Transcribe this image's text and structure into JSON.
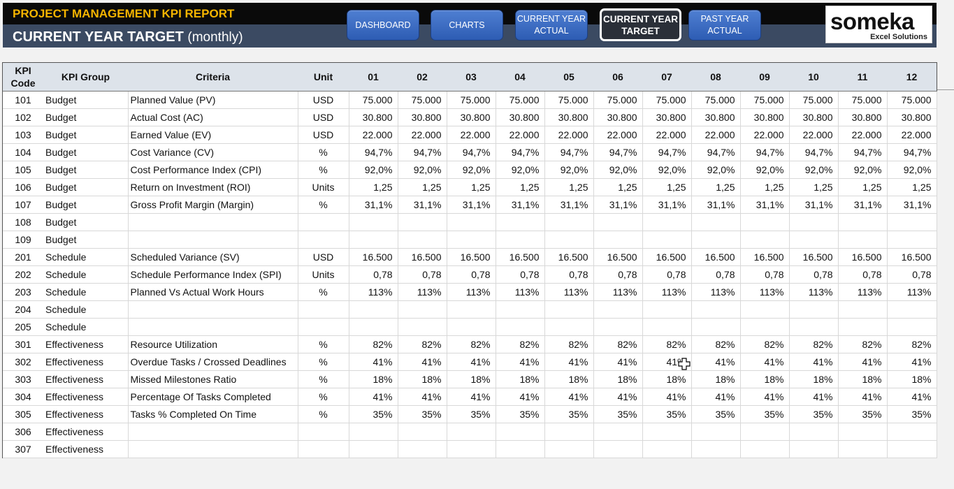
{
  "header": {
    "report_title": "PROJECT MANAGEMENT KPI REPORT",
    "page_title": "CURRENT YEAR TARGET",
    "page_subtitle": "(monthly)"
  },
  "nav": {
    "dashboard": "DASHBOARD",
    "charts": "CHARTS",
    "current_year_actual": "CURRENT YEAR\nACTUAL",
    "current_year_target": "CURRENT YEAR\nTARGET",
    "past_year_actual": "PAST YEAR\nACTUAL"
  },
  "logo": {
    "name": "someka",
    "tagline": "Excel Solutions"
  },
  "table": {
    "headers": {
      "kpi_code": "KPI\nCode",
      "kpi_group": "KPI Group",
      "criteria": "Criteria",
      "unit": "Unit",
      "months": [
        "01",
        "02",
        "03",
        "04",
        "05",
        "06",
        "07",
        "08",
        "09",
        "10",
        "11",
        "12"
      ]
    },
    "rows": [
      {
        "code": "101",
        "group": "Budget",
        "criteria": "Planned Value (PV)",
        "unit": "USD",
        "values": [
          "75.000",
          "75.000",
          "75.000",
          "75.000",
          "75.000",
          "75.000",
          "75.000",
          "75.000",
          "75.000",
          "75.000",
          "75.000",
          "75.000"
        ]
      },
      {
        "code": "102",
        "group": "Budget",
        "criteria": "Actual Cost (AC)",
        "unit": "USD",
        "values": [
          "30.800",
          "30.800",
          "30.800",
          "30.800",
          "30.800",
          "30.800",
          "30.800",
          "30.800",
          "30.800",
          "30.800",
          "30.800",
          "30.800"
        ]
      },
      {
        "code": "103",
        "group": "Budget",
        "criteria": "Earned Value (EV)",
        "unit": "USD",
        "values": [
          "22.000",
          "22.000",
          "22.000",
          "22.000",
          "22.000",
          "22.000",
          "22.000",
          "22.000",
          "22.000",
          "22.000",
          "22.000",
          "22.000"
        ]
      },
      {
        "code": "104",
        "group": "Budget",
        "criteria": "Cost Variance (CV)",
        "unit": "%",
        "values": [
          "94,7%",
          "94,7%",
          "94,7%",
          "94,7%",
          "94,7%",
          "94,7%",
          "94,7%",
          "94,7%",
          "94,7%",
          "94,7%",
          "94,7%",
          "94,7%"
        ]
      },
      {
        "code": "105",
        "group": "Budget",
        "criteria": "Cost Performance Index (CPI)",
        "unit": "%",
        "values": [
          "92,0%",
          "92,0%",
          "92,0%",
          "92,0%",
          "92,0%",
          "92,0%",
          "92,0%",
          "92,0%",
          "92,0%",
          "92,0%",
          "92,0%",
          "92,0%"
        ]
      },
      {
        "code": "106",
        "group": "Budget",
        "criteria": "Return on Investment (ROI)",
        "unit": "Units",
        "values": [
          "1,25",
          "1,25",
          "1,25",
          "1,25",
          "1,25",
          "1,25",
          "1,25",
          "1,25",
          "1,25",
          "1,25",
          "1,25",
          "1,25"
        ]
      },
      {
        "code": "107",
        "group": "Budget",
        "criteria": "Gross Profit Margin (Margin)",
        "unit": "%",
        "values": [
          "31,1%",
          "31,1%",
          "31,1%",
          "31,1%",
          "31,1%",
          "31,1%",
          "31,1%",
          "31,1%",
          "31,1%",
          "31,1%",
          "31,1%",
          "31,1%"
        ]
      },
      {
        "code": "108",
        "group": "Budget",
        "criteria": "",
        "unit": "",
        "values": [
          "",
          "",
          "",
          "",
          "",
          "",
          "",
          "",
          "",
          "",
          "",
          ""
        ]
      },
      {
        "code": "109",
        "group": "Budget",
        "criteria": "",
        "unit": "",
        "values": [
          "",
          "",
          "",
          "",
          "",
          "",
          "",
          "",
          "",
          "",
          "",
          ""
        ]
      },
      {
        "code": "201",
        "group": "Schedule",
        "criteria": "Scheduled Variance (SV)",
        "unit": "USD",
        "values": [
          "16.500",
          "16.500",
          "16.500",
          "16.500",
          "16.500",
          "16.500",
          "16.500",
          "16.500",
          "16.500",
          "16.500",
          "16.500",
          "16.500"
        ]
      },
      {
        "code": "202",
        "group": "Schedule",
        "criteria": "Schedule Performance Index (SPI)",
        "unit": "Units",
        "values": [
          "0,78",
          "0,78",
          "0,78",
          "0,78",
          "0,78",
          "0,78",
          "0,78",
          "0,78",
          "0,78",
          "0,78",
          "0,78",
          "0,78"
        ]
      },
      {
        "code": "203",
        "group": "Schedule",
        "criteria": "Planned Vs Actual Work Hours",
        "unit": "%",
        "values": [
          "113%",
          "113%",
          "113%",
          "113%",
          "113%",
          "113%",
          "113%",
          "113%",
          "113%",
          "113%",
          "113%",
          "113%"
        ]
      },
      {
        "code": "204",
        "group": "Schedule",
        "criteria": "",
        "unit": "",
        "values": [
          "",
          "",
          "",
          "",
          "",
          "",
          "",
          "",
          "",
          "",
          "",
          ""
        ]
      },
      {
        "code": "205",
        "group": "Schedule",
        "criteria": "",
        "unit": "",
        "values": [
          "",
          "",
          "",
          "",
          "",
          "",
          "",
          "",
          "",
          "",
          "",
          ""
        ]
      },
      {
        "code": "301",
        "group": "Effectiveness",
        "criteria": "Resource Utilization",
        "unit": "%",
        "values": [
          "82%",
          "82%",
          "82%",
          "82%",
          "82%",
          "82%",
          "82%",
          "82%",
          "82%",
          "82%",
          "82%",
          "82%"
        ]
      },
      {
        "code": "302",
        "group": "Effectiveness",
        "criteria": "Overdue Tasks / Crossed Deadlines",
        "unit": "%",
        "values": [
          "41%",
          "41%",
          "41%",
          "41%",
          "41%",
          "41%",
          "41%",
          "41%",
          "41%",
          "41%",
          "41%",
          "41%"
        ]
      },
      {
        "code": "303",
        "group": "Effectiveness",
        "criteria": "Missed Milestones Ratio",
        "unit": "%",
        "values": [
          "18%",
          "18%",
          "18%",
          "18%",
          "18%",
          "18%",
          "18%",
          "18%",
          "18%",
          "18%",
          "18%",
          "18%"
        ]
      },
      {
        "code": "304",
        "group": "Effectiveness",
        "criteria": "Percentage Of Tasks Completed",
        "unit": "%",
        "values": [
          "41%",
          "41%",
          "41%",
          "41%",
          "41%",
          "41%",
          "41%",
          "41%",
          "41%",
          "41%",
          "41%",
          "41%"
        ]
      },
      {
        "code": "305",
        "group": "Effectiveness",
        "criteria": "Tasks % Completed On Time",
        "unit": "%",
        "values": [
          "35%",
          "35%",
          "35%",
          "35%",
          "35%",
          "35%",
          "35%",
          "35%",
          "35%",
          "35%",
          "35%",
          "35%"
        ]
      },
      {
        "code": "306",
        "group": "Effectiveness",
        "criteria": "",
        "unit": "",
        "values": [
          "",
          "",
          "",
          "",
          "",
          "",
          "",
          "",
          "",
          "",
          "",
          ""
        ]
      },
      {
        "code": "307",
        "group": "Effectiveness",
        "criteria": "",
        "unit": "",
        "values": [
          "",
          "",
          "",
          "",
          "",
          "",
          "",
          "",
          "",
          "",
          "",
          ""
        ]
      }
    ]
  }
}
